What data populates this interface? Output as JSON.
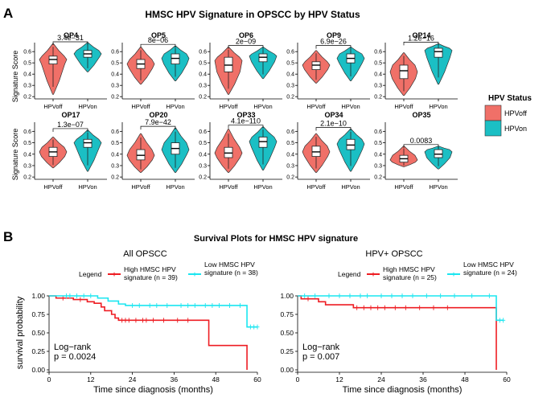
{
  "panel_a": {
    "letter": "A",
    "title": "HMSC HPV Signature in OPSCC by HPV Status",
    "ylabel": "Signature Score",
    "legend": {
      "title": "HPV Status",
      "items": [
        {
          "label": "HPVoff",
          "color": "#F07068"
        },
        {
          "label": "HPVon",
          "color": "#1BBFC4"
        }
      ]
    }
  },
  "panel_b": {
    "letter": "B",
    "title": "Survival Plots for HMSC HPV signature"
  },
  "chart_data": [
    {
      "type": "violin",
      "panel": "A",
      "categories": [
        "HPVoff",
        "HPVon"
      ],
      "row_ticks": [
        [
          0.2,
          0.3,
          0.4,
          0.5,
          0.6
        ],
        [
          0.2,
          0.3,
          0.4,
          0.5,
          0.6
        ]
      ],
      "ylim": [
        0.18,
        0.68
      ],
      "colors": {
        "HPVoff": "#F07068",
        "HPVon": "#1BBFC4"
      },
      "groups": [
        {
          "title": "OP4",
          "pvalue": "3.4e−31",
          "off": {
            "min": 0.22,
            "q1": 0.49,
            "median": 0.53,
            "q3": 0.56,
            "max": 0.67,
            "mode": 0.53
          },
          "on": {
            "min": 0.42,
            "q1": 0.55,
            "median": 0.58,
            "q3": 0.61,
            "max": 0.68,
            "mode": 0.58
          }
        },
        {
          "title": "OP5",
          "pvalue": "8e−06",
          "off": {
            "min": 0.31,
            "q1": 0.45,
            "median": 0.49,
            "q3": 0.53,
            "max": 0.64,
            "mode": 0.49
          },
          "on": {
            "min": 0.34,
            "q1": 0.49,
            "median": 0.54,
            "q3": 0.58,
            "max": 0.65,
            "mode": 0.54
          }
        },
        {
          "title": "OP6",
          "pvalue": "2e−09",
          "off": {
            "min": 0.22,
            "q1": 0.42,
            "median": 0.48,
            "q3": 0.55,
            "max": 0.64,
            "mode": 0.52
          },
          "on": {
            "min": 0.36,
            "q1": 0.51,
            "median": 0.55,
            "q3": 0.58,
            "max": 0.64,
            "mode": 0.56
          }
        },
        {
          "title": "OP9",
          "pvalue": "6.9e−26",
          "off": {
            "min": 0.32,
            "q1": 0.44,
            "median": 0.48,
            "q3": 0.51,
            "max": 0.61,
            "mode": 0.48
          },
          "on": {
            "min": 0.34,
            "q1": 0.5,
            "median": 0.54,
            "q3": 0.58,
            "max": 0.64,
            "mode": 0.54
          }
        },
        {
          "title": "OP14",
          "pvalue": "1.2e−16",
          "off": {
            "min": 0.21,
            "q1": 0.36,
            "median": 0.43,
            "q3": 0.48,
            "max": 0.59,
            "mode": 0.42
          },
          "on": {
            "min": 0.31,
            "q1": 0.55,
            "median": 0.6,
            "q3": 0.63,
            "max": 0.67,
            "mode": 0.61
          }
        },
        {
          "title": "OP17",
          "pvalue": "1.3e−07",
          "off": {
            "min": 0.28,
            "q1": 0.38,
            "median": 0.42,
            "q3": 0.46,
            "max": 0.55,
            "mode": 0.42
          },
          "on": {
            "min": 0.25,
            "q1": 0.46,
            "median": 0.5,
            "q3": 0.53,
            "max": 0.61,
            "mode": 0.5
          }
        },
        {
          "title": "OP20",
          "pvalue": "7.9e−42",
          "off": {
            "min": 0.24,
            "q1": 0.35,
            "median": 0.39,
            "q3": 0.44,
            "max": 0.58,
            "mode": 0.39
          },
          "on": {
            "min": 0.24,
            "q1": 0.4,
            "median": 0.45,
            "q3": 0.5,
            "max": 0.63,
            "mode": 0.44
          }
        },
        {
          "title": "OP33",
          "pvalue": "4.1e−110",
          "off": {
            "min": 0.24,
            "q1": 0.37,
            "median": 0.41,
            "q3": 0.46,
            "max": 0.62,
            "mode": 0.41
          },
          "on": {
            "min": 0.26,
            "q1": 0.46,
            "median": 0.51,
            "q3": 0.55,
            "max": 0.64,
            "mode": 0.51
          }
        },
        {
          "title": "OP34",
          "pvalue": "2.1e−10",
          "off": {
            "min": 0.24,
            "q1": 0.38,
            "median": 0.42,
            "q3": 0.47,
            "max": 0.58,
            "mode": 0.42
          },
          "on": {
            "min": 0.25,
            "q1": 0.44,
            "median": 0.48,
            "q3": 0.53,
            "max": 0.62,
            "mode": 0.49
          }
        },
        {
          "title": "OP35",
          "pvalue": "0.0083",
          "off": {
            "min": 0.29,
            "q1": 0.33,
            "median": 0.36,
            "q3": 0.39,
            "max": 0.47,
            "mode": 0.35
          },
          "on": {
            "min": 0.27,
            "q1": 0.37,
            "median": 0.4,
            "q3": 0.44,
            "max": 0.47,
            "mode": 0.42
          }
        }
      ]
    },
    {
      "type": "line",
      "subtype": "kaplan-meier",
      "panel": "B",
      "title": "All OPSCC",
      "xlabel": "Time since diagnosis (months)",
      "ylabel": "survival probability",
      "xticks": [
        0,
        12,
        24,
        36,
        48,
        60
      ],
      "yticks": [
        0.0,
        0.25,
        0.5,
        0.75,
        1.0
      ],
      "xlim": [
        0,
        60
      ],
      "ylim": [
        0,
        1
      ],
      "legend_title": "Legend",
      "legend_placement": "top",
      "annotation": [
        "Log−rank",
        "p = 0.0024"
      ],
      "series": [
        {
          "name": [
            "High HMSC HPV",
            "signature (n = 39)"
          ],
          "color": "#EE1D23",
          "steps": [
            [
              0,
              1.0
            ],
            [
              2,
              0.97
            ],
            [
              7,
              0.95
            ],
            [
              11,
              0.92
            ],
            [
              13,
              0.9
            ],
            [
              15,
              0.85
            ],
            [
              16,
              0.8
            ],
            [
              18,
              0.75
            ],
            [
              19,
              0.7
            ],
            [
              20,
              0.67
            ],
            [
              46,
              0.33
            ],
            [
              57,
              0.0
            ]
          ],
          "censor": [
            [
              4,
              0.97
            ],
            [
              9,
              0.95
            ],
            [
              21,
              0.67
            ],
            [
              22,
              0.67
            ],
            [
              23,
              0.67
            ],
            [
              25,
              0.67
            ],
            [
              27,
              0.67
            ],
            [
              28,
              0.67
            ],
            [
              30,
              0.67
            ],
            [
              33,
              0.67
            ],
            [
              37,
              0.67
            ],
            [
              40,
              0.67
            ]
          ]
        },
        {
          "name": [
            "Low HMSC HPV",
            "signature (n = 38)"
          ],
          "color": "#1AE6F0",
          "steps": [
            [
              0,
              1.0
            ],
            [
              14,
              0.97
            ],
            [
              17,
              0.93
            ],
            [
              20,
              0.89
            ],
            [
              22,
              0.87
            ],
            [
              57,
              0.58
            ]
          ],
          "censor": [
            [
              5,
              1.0
            ],
            [
              6,
              1.0
            ],
            [
              8,
              1.0
            ],
            [
              10,
              1.0
            ],
            [
              12,
              1.0
            ],
            [
              24,
              0.87
            ],
            [
              26,
              0.87
            ],
            [
              29,
              0.87
            ],
            [
              31,
              0.87
            ],
            [
              34,
              0.87
            ],
            [
              38,
              0.87
            ],
            [
              40,
              0.87
            ],
            [
              42,
              0.87
            ],
            [
              45,
              0.87
            ],
            [
              47,
              0.87
            ],
            [
              49,
              0.87
            ],
            [
              52,
              0.87
            ],
            [
              55,
              0.87
            ],
            [
              58,
              0.58
            ],
            [
              59,
              0.58
            ],
            [
              60,
              0.58
            ]
          ]
        }
      ]
    },
    {
      "type": "line",
      "subtype": "kaplan-meier",
      "panel": "B",
      "title": "HPV+ OPSCC",
      "xlabel": "Time since diagnosis (months)",
      "ylabel": "",
      "xticks": [
        0,
        12,
        24,
        36,
        48,
        60
      ],
      "yticks": [
        0.0,
        0.25,
        0.5,
        0.75,
        1.0
      ],
      "xlim": [
        0,
        60
      ],
      "ylim": [
        0,
        1
      ],
      "legend_title": "Legend",
      "legend_placement": "top",
      "annotation": [
        "Log−rank",
        "p = 0.007"
      ],
      "series": [
        {
          "name": [
            "High HMSC HPV",
            "signature (n = 25)"
          ],
          "color": "#EE1D23",
          "steps": [
            [
              0,
              1.0
            ],
            [
              1,
              0.96
            ],
            [
              6,
              0.92
            ],
            [
              8,
              0.88
            ],
            [
              16,
              0.84
            ],
            [
              57,
              0.0
            ]
          ],
          "censor": [
            [
              3,
              0.96
            ],
            [
              17,
              0.84
            ],
            [
              19,
              0.84
            ],
            [
              21,
              0.84
            ],
            [
              23,
              0.84
            ],
            [
              25,
              0.84
            ],
            [
              28,
              0.84
            ],
            [
              31,
              0.84
            ],
            [
              35,
              0.84
            ],
            [
              39,
              0.84
            ],
            [
              43,
              0.84
            ]
          ]
        },
        {
          "name": [
            "Low HMSC HPV",
            "signature (n = 24)"
          ],
          "color": "#1AE6F0",
          "steps": [
            [
              0,
              1.0
            ],
            [
              57,
              0.67
            ]
          ],
          "censor": [
            [
              2,
              1.0
            ],
            [
              5,
              1.0
            ],
            [
              9,
              1.0
            ],
            [
              12,
              1.0
            ],
            [
              15,
              1.0
            ],
            [
              18,
              1.0
            ],
            [
              20,
              1.0
            ],
            [
              24,
              1.0
            ],
            [
              27,
              1.0
            ],
            [
              30,
              1.0
            ],
            [
              33,
              1.0
            ],
            [
              37,
              1.0
            ],
            [
              41,
              1.0
            ],
            [
              45,
              1.0
            ],
            [
              50,
              1.0
            ],
            [
              55,
              1.0
            ],
            [
              58,
              0.67
            ],
            [
              59,
              0.67
            ]
          ]
        }
      ]
    }
  ]
}
